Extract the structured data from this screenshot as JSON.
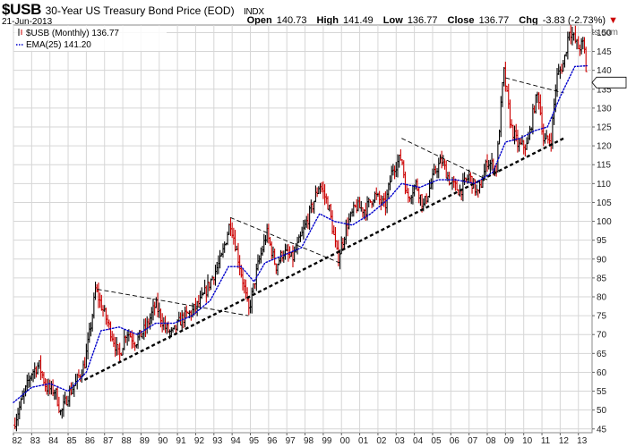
{
  "header": {
    "symbol": "$USB",
    "description": "30-Year US Treasury Bond Price (EOD)",
    "index": "INDX",
    "date": "21-Jun-2013",
    "open_label": "Open",
    "open": "140.73",
    "high_label": "High",
    "high": "141.49",
    "low_label": "Low",
    "low": "136.77",
    "close_label": "Close",
    "close": "136.77",
    "chg_label": "Chg",
    "chg": "-3.83 (-2.73%)",
    "chg_arrow": "▼",
    "copyright": "© StockCharts.com"
  },
  "chart_data": {
    "type": "ohlc",
    "ylim": [
      44,
      152
    ],
    "yticks": [
      45,
      50,
      55,
      60,
      65,
      70,
      75,
      80,
      85,
      90,
      95,
      100,
      105,
      110,
      115,
      120,
      125,
      130,
      135,
      140,
      145,
      150
    ],
    "xticks": [
      "82",
      "83",
      "84",
      "85",
      "86",
      "87",
      "88",
      "89",
      "90",
      "91",
      "92",
      "93",
      "94",
      "95",
      "96",
      "97",
      "98",
      "99",
      "00",
      "01",
      "02",
      "03",
      "04",
      "05",
      "06",
      "07",
      "08",
      "09",
      "10",
      "11",
      "12",
      "13"
    ],
    "x_range": [
      1982.0,
      2013.75
    ],
    "grid": true,
    "price_label": "136.77",
    "legend": [
      {
        "name": "$USB (Monthly) 136.77",
        "color": "#000000"
      },
      {
        "name": "EMA(25) 141.20",
        "color": "#0000cc"
      }
    ],
    "keypoints": [
      [
        1982.0,
        46
      ],
      [
        1982.5,
        53
      ],
      [
        1983.0,
        60
      ],
      [
        1983.4,
        62
      ],
      [
        1983.8,
        56
      ],
      [
        1984.3,
        55
      ],
      [
        1984.6,
        49
      ],
      [
        1985.0,
        54
      ],
      [
        1985.4,
        57
      ],
      [
        1985.9,
        62
      ],
      [
        1986.3,
        74
      ],
      [
        1986.5,
        82
      ],
      [
        1986.8,
        78
      ],
      [
        1987.4,
        70
      ],
      [
        1987.8,
        64
      ],
      [
        1988.2,
        71
      ],
      [
        1988.7,
        68
      ],
      [
        1989.3,
        72
      ],
      [
        1989.8,
        78
      ],
      [
        1990.3,
        72
      ],
      [
        1990.7,
        70
      ],
      [
        1991.2,
        74
      ],
      [
        1991.8,
        76
      ],
      [
        1992.3,
        79
      ],
      [
        1992.8,
        84
      ],
      [
        1993.4,
        90
      ],
      [
        1993.9,
        100
      ],
      [
        1994.3,
        91
      ],
      [
        1994.6,
        84
      ],
      [
        1994.9,
        76
      ],
      [
        1995.4,
        88
      ],
      [
        1995.9,
        97
      ],
      [
        1996.4,
        88
      ],
      [
        1996.8,
        92
      ],
      [
        1997.3,
        90
      ],
      [
        1997.8,
        96
      ],
      [
        1998.4,
        104
      ],
      [
        1998.8,
        110
      ],
      [
        1999.3,
        104
      ],
      [
        1999.8,
        90
      ],
      [
        2000.3,
        99
      ],
      [
        2000.8,
        104
      ],
      [
        2001.3,
        103
      ],
      [
        2001.8,
        107
      ],
      [
        2002.4,
        104
      ],
      [
        2002.8,
        114
      ],
      [
        2003.3,
        117
      ],
      [
        2003.6,
        106
      ],
      [
        2004.1,
        110
      ],
      [
        2004.5,
        104
      ],
      [
        2005.2,
        114
      ],
      [
        2005.5,
        116
      ],
      [
        2006.0,
        110
      ],
      [
        2006.5,
        108
      ],
      [
        2007.0,
        112
      ],
      [
        2007.5,
        107
      ],
      [
        2008.0,
        116
      ],
      [
        2008.5,
        114
      ],
      [
        2008.9,
        140
      ],
      [
        2009.3,
        125
      ],
      [
        2009.7,
        120
      ],
      [
        2010.2,
        120
      ],
      [
        2010.6,
        131
      ],
      [
        2010.8,
        134
      ],
      [
        2011.1,
        121
      ],
      [
        2011.5,
        122
      ],
      [
        2011.8,
        138
      ],
      [
        2012.2,
        142
      ],
      [
        2012.5,
        151
      ],
      [
        2013.0,
        146
      ],
      [
        2013.3,
        147
      ],
      [
        2013.47,
        137
      ]
    ],
    "ema_keypoints": [
      [
        1982.0,
        52
      ],
      [
        1983.0,
        56
      ],
      [
        1984.0,
        57
      ],
      [
        1985.0,
        55
      ],
      [
        1986.0,
        60
      ],
      [
        1986.8,
        71
      ],
      [
        1987.8,
        72
      ],
      [
        1988.8,
        70
      ],
      [
        1989.8,
        73
      ],
      [
        1990.8,
        73
      ],
      [
        1991.8,
        75
      ],
      [
        1992.8,
        79
      ],
      [
        1993.8,
        88
      ],
      [
        1994.5,
        88
      ],
      [
        1995.2,
        84
      ],
      [
        1995.8,
        89
      ],
      [
        1996.8,
        91
      ],
      [
        1997.8,
        93
      ],
      [
        1998.8,
        102
      ],
      [
        1999.6,
        100
      ],
      [
        2000.6,
        99
      ],
      [
        2001.6,
        102
      ],
      [
        2002.6,
        106
      ],
      [
        2003.3,
        110
      ],
      [
        2004.3,
        109
      ],
      [
        2005.3,
        111
      ],
      [
        2006.3,
        111
      ],
      [
        2007.3,
        110
      ],
      [
        2008.3,
        113
      ],
      [
        2009.0,
        121
      ],
      [
        2009.8,
        122
      ],
      [
        2010.6,
        124
      ],
      [
        2011.3,
        125
      ],
      [
        2012.0,
        133
      ],
      [
        2012.8,
        141
      ],
      [
        2013.47,
        141.2
      ]
    ],
    "trendlines": [
      {
        "from": [
          1985.9,
          58
        ],
        "to": [
          2012.2,
          122
        ],
        "style": "support"
      },
      {
        "from": [
          1986.6,
          82
        ],
        "to": [
          1994.9,
          75
        ],
        "style": "dashed"
      },
      {
        "from": [
          1993.9,
          101
        ],
        "to": [
          1999.9,
          89
        ],
        "style": "dashed"
      },
      {
        "from": [
          2003.3,
          122
        ],
        "to": [
          2008.0,
          111
        ],
        "style": "dashed"
      },
      {
        "from": [
          2009.0,
          138
        ],
        "to": [
          2012.2,
          134
        ],
        "style": "dashed"
      }
    ]
  }
}
